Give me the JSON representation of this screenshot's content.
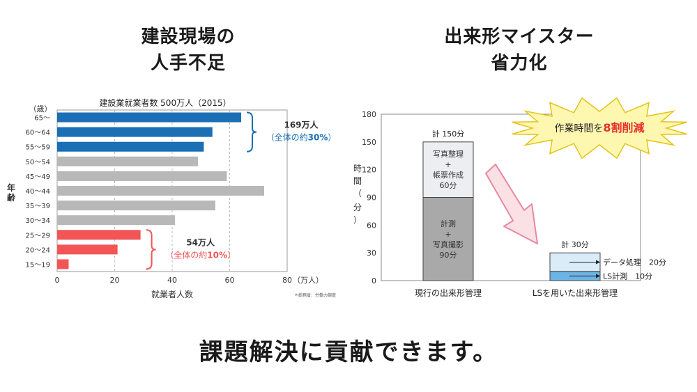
{
  "left_heading": {
    "line1": "建設現場の",
    "line2": "人手不足"
  },
  "right_heading": {
    "line1": "出来形マイスター",
    "line2": "省力化"
  },
  "footer": "課題解決に貢献できます。",
  "chart_data": [
    {
      "type": "bar",
      "orientation": "horizontal",
      "title": "建設業就業者数 500万人（2015）",
      "xlabel": "就業者人数",
      "x_unit": "（万人）",
      "ylabel": "年齢",
      "y_unit": "（歳）",
      "xlim": [
        0,
        80
      ],
      "xticks": [
        0,
        20,
        40,
        60,
        80
      ],
      "grid": "vertical-dashed",
      "source_note": "＊総務省：労働力調査",
      "categories": [
        "65〜",
        "60〜64",
        "55〜59",
        "50〜54",
        "45〜49",
        "40〜44",
        "35〜39",
        "30〜34",
        "25〜29",
        "20〜24",
        "15〜19"
      ],
      "values": [
        64,
        54,
        51,
        49,
        59,
        72,
        55,
        41,
        29,
        21,
        4
      ],
      "colors": [
        "#1a6fb5",
        "#1a6fb5",
        "#1a6fb5",
        "#b8b8b8",
        "#b8b8b8",
        "#b8b8b8",
        "#b8b8b8",
        "#b8b8b8",
        "#f25555",
        "#f25555",
        "#f25555"
      ],
      "annotations": [
        {
          "text": "169万人",
          "sub_prefix": "（全体の約",
          "sub_bold": "30%",
          "sub_suffix": "）",
          "color": "#1a6fb5",
          "categories": [
            "65〜",
            "60〜64",
            "55〜59"
          ]
        },
        {
          "text": "54万人",
          "sub_prefix": "（全体の約",
          "sub_bold": "10%",
          "sub_suffix": "）",
          "color": "#f25555",
          "categories": [
            "25〜29",
            "20〜24",
            "15〜19"
          ]
        }
      ]
    },
    {
      "type": "bar",
      "stacked": true,
      "ylabel": "時間（分）",
      "ylim": [
        0,
        180
      ],
      "yticks": [
        0,
        30,
        60,
        90,
        120,
        150,
        180
      ],
      "categories": [
        "現行の出来形管理",
        "LSを用いた出来形管理"
      ],
      "totals": [
        "計 150分",
        "計 30分"
      ],
      "series": [
        {
          "category": "現行の出来形管理",
          "segments": [
            {
              "value": 90,
              "lines": [
                "計測",
                "+",
                "写真撮影",
                "90分"
              ],
              "color": "#a9a9a9"
            },
            {
              "value": 60,
              "lines": [
                "写真整理",
                "+",
                "帳票作成",
                "60分"
              ],
              "color": "#eceef1"
            }
          ]
        },
        {
          "category": "LSを用いた出来形管理",
          "segments": [
            {
              "value": 10,
              "callout": "LS計測　10分",
              "color": "#6cb4e4"
            },
            {
              "value": 20,
              "callout": "データ処理　20分",
              "color": "#d9ecf8"
            }
          ]
        }
      ],
      "burst_prefix": "作業時間を",
      "burst_highlight": "8割削減",
      "burst_colors": {
        "fill": "#fdf7b0",
        "stroke": "#e6c31a",
        "highlight": "#e8302a"
      },
      "arrow_colors": {
        "fill": "#fbe0e6",
        "stroke": "#e58aa0"
      }
    }
  ]
}
